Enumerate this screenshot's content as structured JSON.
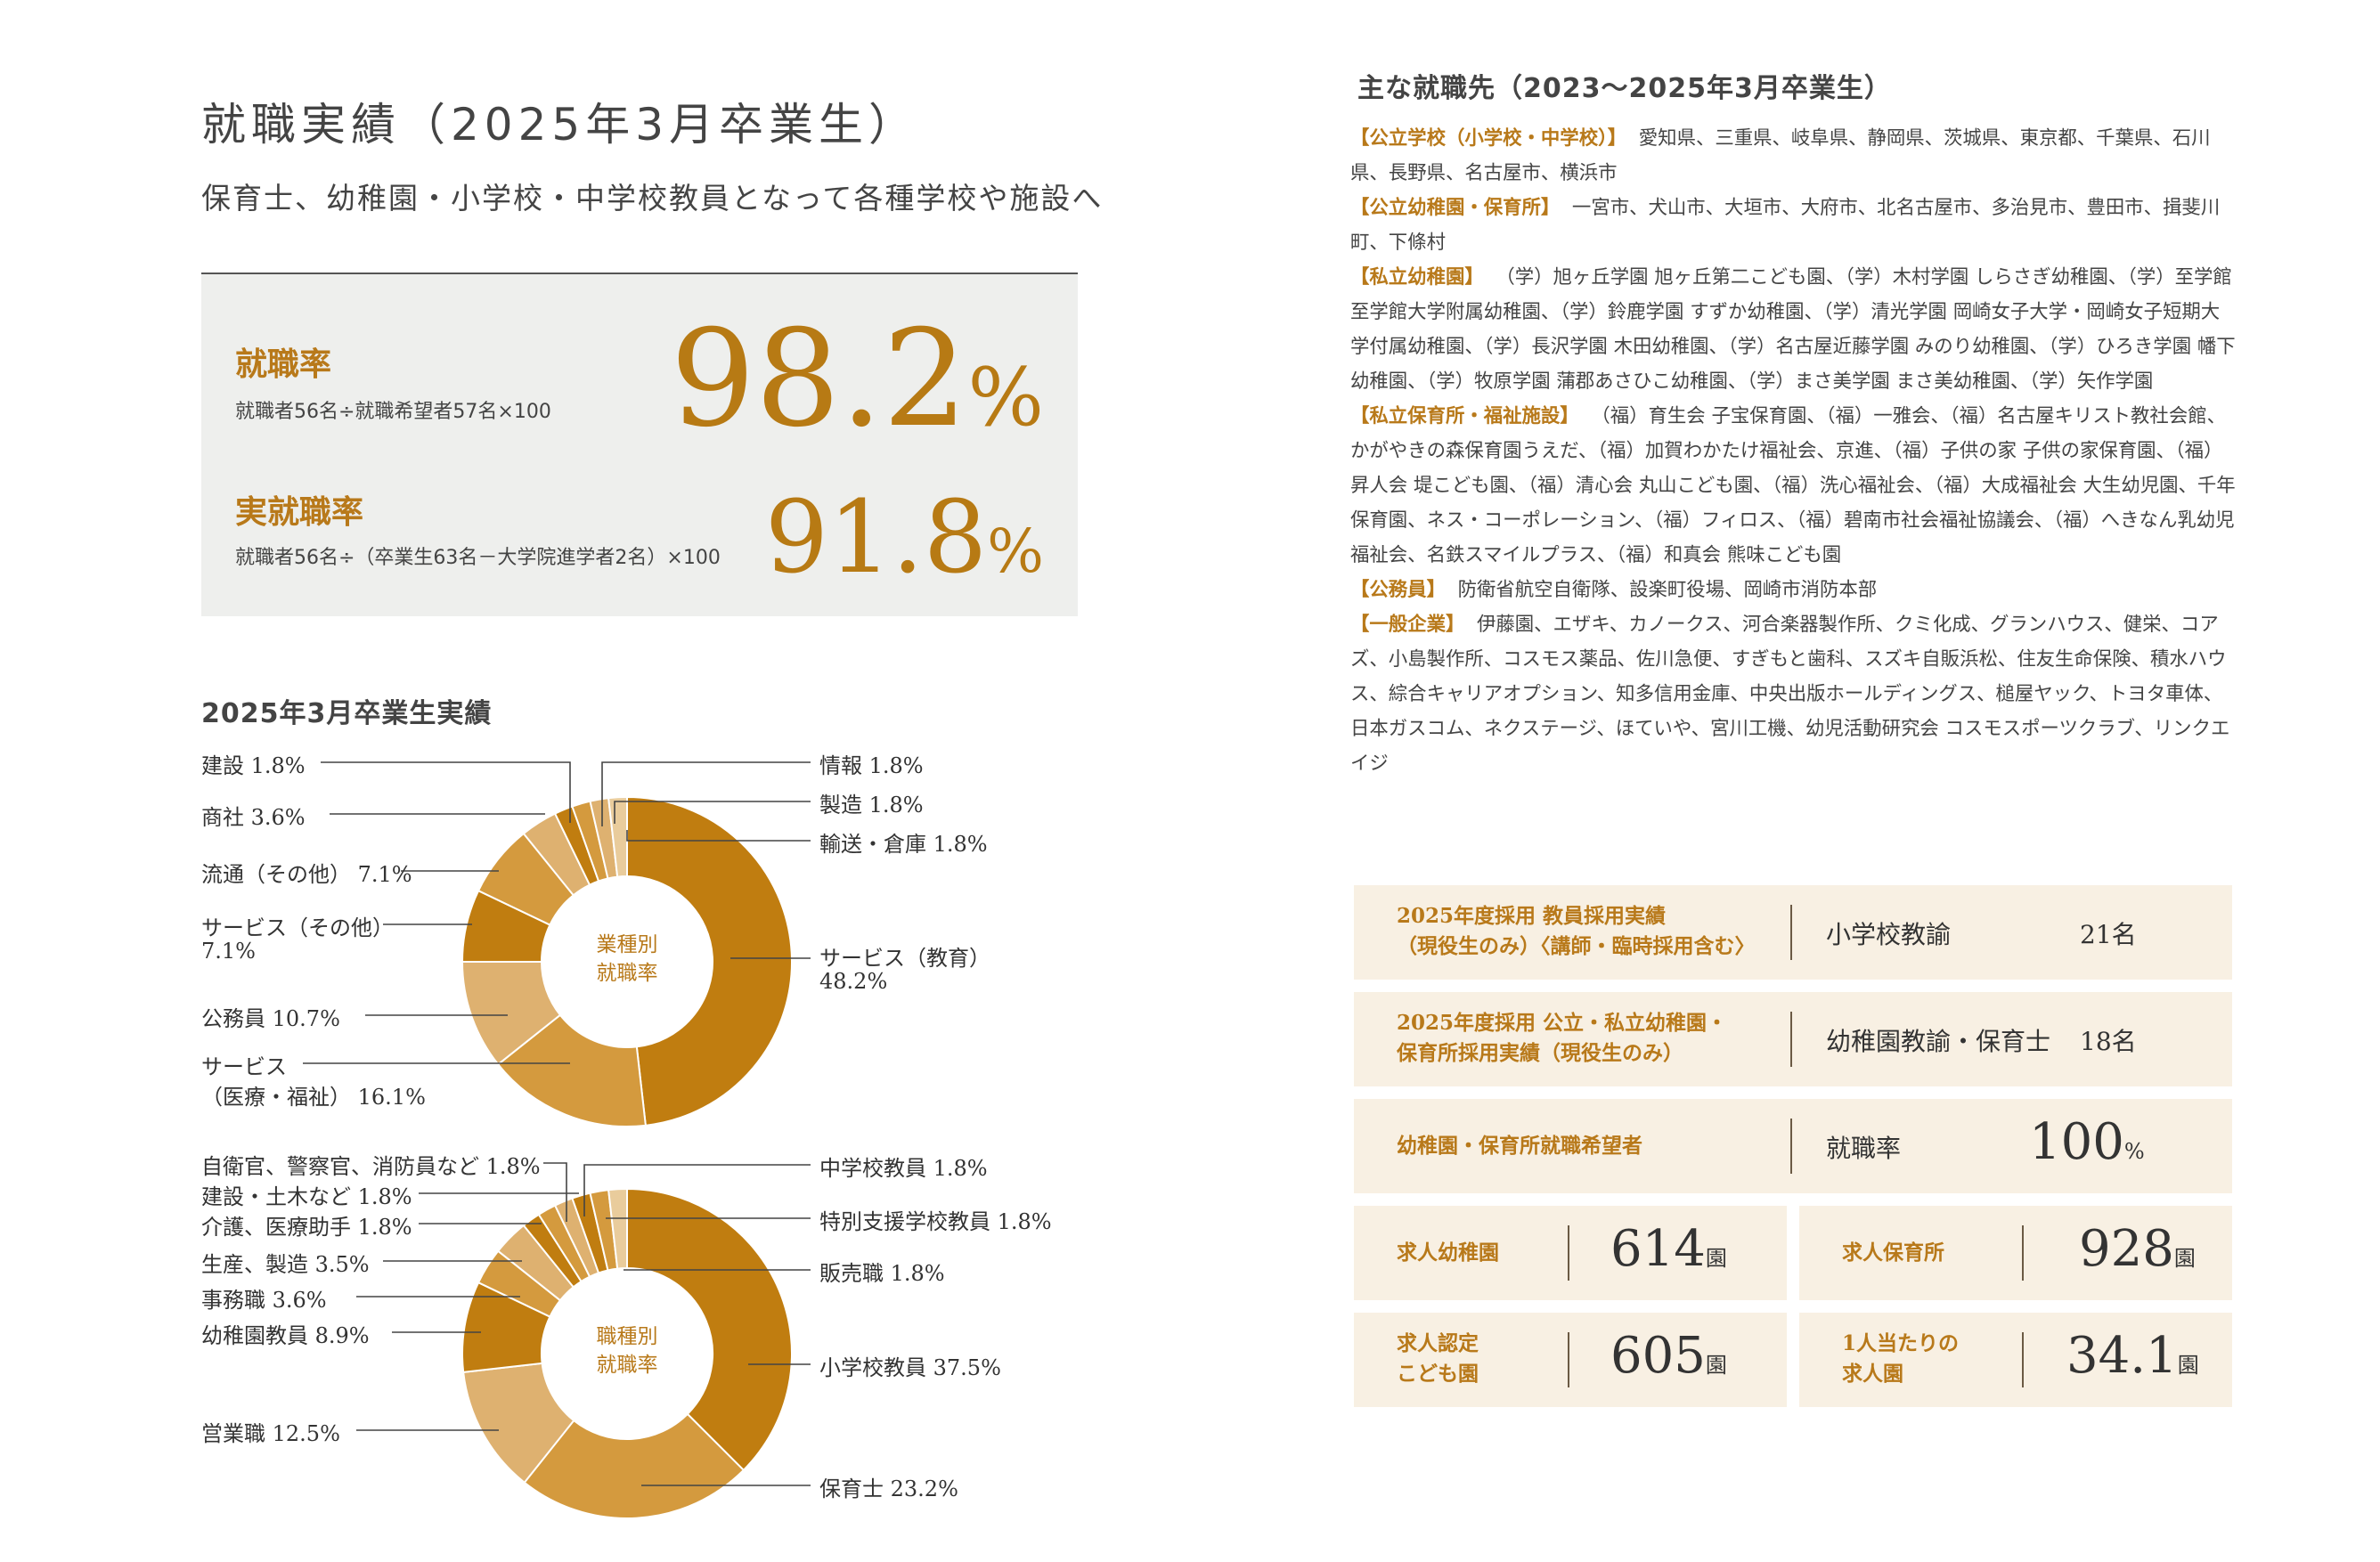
{
  "header": {
    "title": "就職実績（2025年3月卒業生）",
    "subtitle": "保育士、幼稚園・小学校・中学校教員となって各種学校や施設へ"
  },
  "rates": {
    "employment": {
      "label": "就職率",
      "formula": "就職者56名÷就職希望者57名×100",
      "value": "98.2",
      "unit": "%"
    },
    "actual": {
      "label": "実就職率",
      "formula": "就職者56名÷（卒業生63名－大学院進学者2名）×100",
      "value": "91.8",
      "unit": "%"
    }
  },
  "results_heading": "2025年3月卒業生実績",
  "colors": {
    "dark": "#c07d10",
    "mid": "#d49a3e",
    "light": "#deb170",
    "pale": "#e9cc9c",
    "accent": "#b8791a"
  },
  "chart_data": [
    {
      "type": "pie",
      "donut": true,
      "center_label": [
        "業種別",
        "就職率"
      ],
      "unit": "%",
      "slices": [
        {
          "label": "サービス（教育）",
          "value": 48.2,
          "color": "#c07d10"
        },
        {
          "label": "サービス（医療・福祉）",
          "value": 16.1,
          "color": "#d49a3e"
        },
        {
          "label": "公務員",
          "value": 10.7,
          "color": "#deb170"
        },
        {
          "label": "サービス（その他）",
          "value": 7.1,
          "color": "#c07d10"
        },
        {
          "label": "流通（その他）",
          "value": 7.1,
          "color": "#d49a3e"
        },
        {
          "label": "商社",
          "value": 3.6,
          "color": "#deb170"
        },
        {
          "label": "建設",
          "value": 1.8,
          "color": "#c07d10"
        },
        {
          "label": "情報",
          "value": 1.8,
          "color": "#d49a3e"
        },
        {
          "label": "製造",
          "value": 1.8,
          "color": "#deb170"
        },
        {
          "label": "輸送・倉庫",
          "value": 1.8,
          "color": "#e9cc9c"
        }
      ],
      "label_texts": {
        "info": "情報 1.8%",
        "manufacturing": "製造 1.8%",
        "transport": "輸送・倉庫 1.8%",
        "service_edu": [
          "サービス（教育）",
          "48.2%"
        ],
        "construction": "建設 1.8%",
        "trading": "商社 3.6%",
        "retail_other": "流通（その他） 7.1%",
        "service_other": [
          "サービス（その他）",
          "7.1%"
        ],
        "public": "公務員 10.7%",
        "service_med": [
          "サービス",
          "（医療・福祉） 16.1%"
        ]
      }
    },
    {
      "type": "pie",
      "donut": true,
      "center_label": [
        "職種別",
        "就職率"
      ],
      "unit": "%",
      "slices": [
        {
          "label": "小学校教員",
          "value": 37.5,
          "color": "#c07d10"
        },
        {
          "label": "保育士",
          "value": 23.2,
          "color": "#d49a3e"
        },
        {
          "label": "営業職",
          "value": 12.5,
          "color": "#deb170"
        },
        {
          "label": "幼稚園教員",
          "value": 8.9,
          "color": "#c07d10"
        },
        {
          "label": "事務職",
          "value": 3.6,
          "color": "#d49a3e"
        },
        {
          "label": "生産、製造",
          "value": 3.5,
          "color": "#deb170"
        },
        {
          "label": "介護、医療助手",
          "value": 1.8,
          "color": "#c07d10"
        },
        {
          "label": "建設・土木など",
          "value": 1.8,
          "color": "#d49a3e"
        },
        {
          "label": "自衛官、警察官、消防員など",
          "value": 1.8,
          "color": "#deb170"
        },
        {
          "label": "中学校教員",
          "value": 1.8,
          "color": "#c07d10"
        },
        {
          "label": "特別支援学校教員",
          "value": 1.8,
          "color": "#d49a3e"
        },
        {
          "label": "販売職",
          "value": 1.8,
          "color": "#e9cc9c"
        }
      ],
      "label_texts": {
        "jhs": "中学校教員 1.8%",
        "special": "特別支援学校教員 1.8%",
        "sales": "販売職 1.8%",
        "elem": "小学校教員 37.5%",
        "nursery": "保育士 23.2%",
        "sdf": "自衛官、警察官、消防員など 1.8%",
        "civil": "建設・土木など 1.8%",
        "care": "介護、医療助手 1.8%",
        "production": "生産、製造 3.5%",
        "office": "事務職 3.6%",
        "kinder": "幼稚園教員 8.9%",
        "salesjob": "営業職 12.5%"
      }
    }
  ],
  "destinations": {
    "heading": "主な就職先（2023〜2025年3月卒業生）",
    "categories": [
      {
        "name": "【公立学校（小学校・中学校）】",
        "text": "愛知県、三重県、岐阜県、静岡県、茨城県、東京都、千葉県、石川県、長野県、名古屋市、横浜市"
      },
      {
        "name": "【公立幼稚園・保育所】",
        "text": "一宮市、犬山市、大垣市、大府市、北名古屋市、多治見市、豊田市、揖斐川町、下條村"
      },
      {
        "name": "【私立幼稚園】",
        "text": "（学）旭ヶ丘学園 旭ヶ丘第二こども園、（学）木村学園 しらさぎ幼稚園、（学）至学館 至学館大学附属幼稚園、（学）鈴鹿学園 すずか幼稚園、（学）清光学園 岡崎女子大学・岡崎女子短期大学付属幼稚園、（学）長沢学園 木田幼稚園、（学）名古屋近藤学園 みのり幼稚園、（学）ひろき学園 幡下幼稚園、（学）牧原学園 蒲郡あさひこ幼稚園、（学）まさ美学園 まさ美幼稚園、（学）矢作学園"
      },
      {
        "name": "【私立保育所・福祉施設】",
        "text": "（福）育生会 子宝保育園、（福）一雅会、（福）名古屋キリスト教社会館、かがやきの森保育園うえだ、（福）加賀わかたけ福祉会、京進、（福）子供の家 子供の家保育園、（福）昇人会 堤こども園、（福）清心会 丸山こども園、（福）洗心福祉会、（福）大成福祉会 大生幼児園、千年保育園、ネス・コーポレーション、（福）フィロス、（福）碧南市社会福祉協議会、（福）へきなん乳幼児福祉会、名鉄スマイルプラス、（福）和真会 熊味こども園"
      },
      {
        "name": "【公務員】",
        "text": "防衛省航空自衛隊、設楽町役場、岡崎市消防本部"
      },
      {
        "name": "【一般企業】",
        "text": "伊藤園、エザキ、カノークス、河合楽器製作所、クミ化成、グランハウス、健栄、コアズ、小島製作所、コスモス薬品、佐川急便、すぎもと歯科、スズキ自販浜松、住友生命保険、積水ハウス、綜合キャリアオプション、知多信用金庫、中央出版ホールディングス、槌屋ヤック、トヨタ車体、日本ガスコム、ネクステージ、ほていや、宮川工機、幼児活動研究会 コスモスポーツクラブ、リンクエイジ"
      }
    ]
  },
  "stats": {
    "teacher": {
      "label1": "2025年度採用 教員採用実績",
      "label2": "（現役生のみ）〈講師・臨時採用含む〉",
      "item": "小学校教諭",
      "count": "21名"
    },
    "kinder": {
      "label1": "2025年度採用 公立・私立幼稚園・",
      "label2": "保育所採用実績（現役生のみ）",
      "item": "幼稚園教諭・保育士",
      "count": "18名"
    },
    "hope": {
      "label": "幼稚園・保育所就職希望者",
      "item": "就職率",
      "value": "100",
      "unit": "%"
    },
    "req_kinder": {
      "label": "求人幼稚園",
      "value": "614",
      "unit": "園"
    },
    "req_nursery": {
      "label": "求人保育所",
      "value": "928",
      "unit": "園"
    },
    "req_kodomo": {
      "label1": "求人認定",
      "label2": "こども園",
      "value": "605",
      "unit": "園"
    },
    "req_per": {
      "label1": "1人当たりの",
      "label2": "求人園",
      "value": "34.1",
      "unit": "園"
    }
  }
}
